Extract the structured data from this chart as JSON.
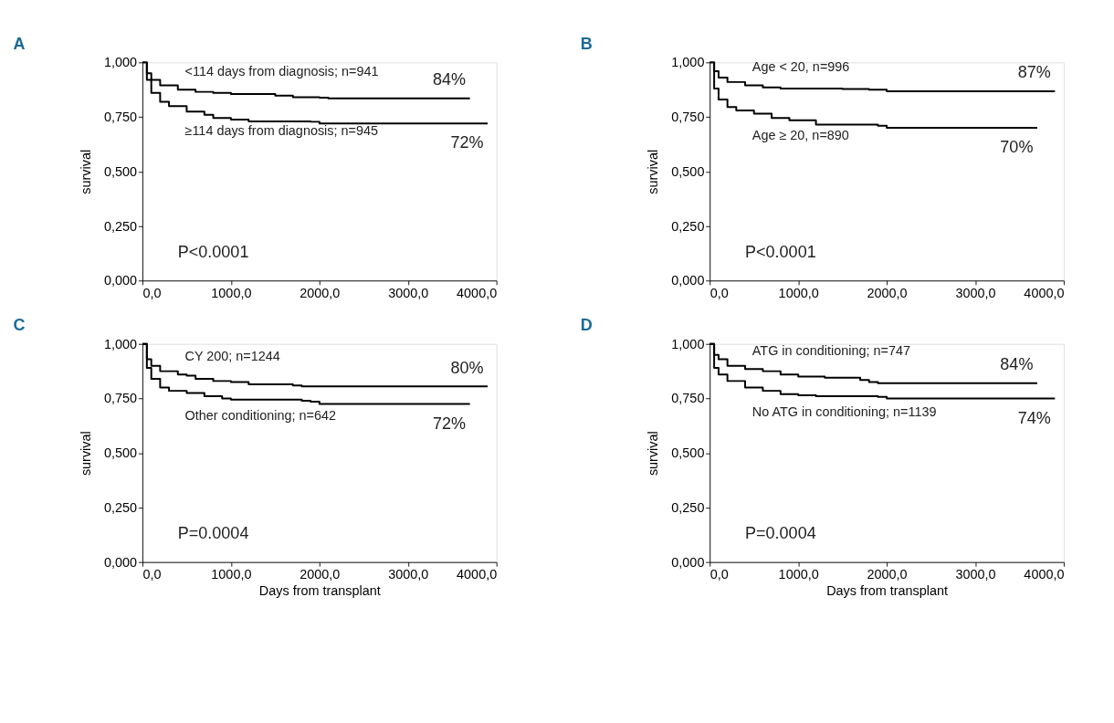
{
  "chart_data": [
    {
      "type": "step",
      "title": "A",
      "ylabel": "survival",
      "x": [
        0,
        50,
        100,
        200,
        400,
        600,
        800,
        1000,
        1500,
        1700,
        2000,
        2100,
        3700
      ],
      "series": [
        {
          "name": "<114 days from diagnosis; n=941",
          "color": "#000000",
          "values": [
            1,
            0.95,
            0.92,
            0.895,
            0.875,
            0.865,
            0.86,
            0.855,
            0.848,
            0.84,
            0.838,
            0.835,
            0.835
          ]
        },
        {
          "name": "≥114 days from diagnosis; n=945",
          "color": "#000000",
          "x": [
            0,
            50,
            100,
            200,
            300,
            500,
            700,
            800,
            1000,
            1200,
            1900,
            2000,
            3900
          ],
          "values": [
            1,
            0.92,
            0.86,
            0.82,
            0.8,
            0.775,
            0.76,
            0.745,
            0.738,
            0.73,
            0.728,
            0.72,
            0.72
          ]
        }
      ],
      "xlim": [
        0,
        4000
      ],
      "ylim": [
        0,
        1
      ],
      "xticks": [
        {
          "value": 0,
          "label": "0,0"
        },
        {
          "value": 1000,
          "label": "1000,0"
        },
        {
          "value": 2000,
          "label": "2000,0"
        },
        {
          "value": 3000,
          "label": "3000,0"
        },
        {
          "value": 4000,
          "label": "4000,0"
        }
      ],
      "yticks": [
        {
          "value": 0,
          "label": "0,000"
        },
        {
          "value": 0.25,
          "label": "0,250"
        },
        {
          "value": 0.5,
          "label": "0,500"
        },
        {
          "value": 0.75,
          "label": "0,750"
        },
        {
          "value": 1,
          "label": "1,000"
        }
      ],
      "annotations": [
        "84%",
        "72%",
        "P<0.0001"
      ],
      "grid": false,
      "legend": false
    },
    {
      "type": "step",
      "title": "B",
      "ylabel": "survival",
      "x": [
        0,
        50,
        100,
        200,
        400,
        600,
        800,
        1500,
        1800,
        2000,
        3900
      ],
      "series": [
        {
          "name": "Age < 20, n=996",
          "color": "#000000",
          "values": [
            1,
            0.96,
            0.93,
            0.91,
            0.895,
            0.885,
            0.88,
            0.878,
            0.875,
            0.868,
            0.868
          ]
        },
        {
          "name": "Age ≥ 20, n=890",
          "color": "#000000",
          "x": [
            0,
            50,
            100,
            200,
            300,
            500,
            700,
            900,
            1200,
            1900,
            2000,
            3700
          ],
          "values": [
            1,
            0.88,
            0.83,
            0.795,
            0.78,
            0.765,
            0.745,
            0.735,
            0.715,
            0.71,
            0.7,
            0.7
          ]
        }
      ],
      "xlim": [
        0,
        4000
      ],
      "ylim": [
        0,
        1
      ],
      "xticks": [
        {
          "value": 0,
          "label": "0,0"
        },
        {
          "value": 1000,
          "label": "1000,0"
        },
        {
          "value": 2000,
          "label": "2000,0"
        },
        {
          "value": 3000,
          "label": "3000,0"
        },
        {
          "value": 4000,
          "label": "4000,0"
        }
      ],
      "yticks": [
        {
          "value": 0,
          "label": "0,000"
        },
        {
          "value": 0.25,
          "label": "0,250"
        },
        {
          "value": 0.5,
          "label": "0,500"
        },
        {
          "value": 0.75,
          "label": "0,750"
        },
        {
          "value": 1,
          "label": "1,000"
        }
      ],
      "annotations": [
        "87%",
        "70%",
        "P<0.0001"
      ],
      "grid": false,
      "legend": false
    },
    {
      "type": "step",
      "title": "C",
      "ylabel": "survival",
      "xlabel": "Days from transplant",
      "x": [
        0,
        50,
        100,
        200,
        400,
        500,
        600,
        800,
        1000,
        1200,
        1700,
        1800,
        3900
      ],
      "series": [
        {
          "name": "CY 200; n=1244",
          "color": "#000000",
          "values": [
            1,
            0.93,
            0.9,
            0.875,
            0.86,
            0.855,
            0.84,
            0.83,
            0.825,
            0.815,
            0.81,
            0.805,
            0.805
          ]
        },
        {
          "name": "Other conditioning; n=642",
          "color": "#000000",
          "x": [
            0,
            50,
            100,
            200,
            300,
            500,
            700,
            900,
            1000,
            1800,
            1900,
            2000,
            3700
          ],
          "values": [
            1,
            0.89,
            0.84,
            0.8,
            0.785,
            0.775,
            0.76,
            0.75,
            0.745,
            0.74,
            0.735,
            0.725,
            0.725
          ]
        }
      ],
      "xlim": [
        0,
        4000
      ],
      "ylim": [
        0,
        1
      ],
      "xticks": [
        {
          "value": 0,
          "label": "0,0"
        },
        {
          "value": 1000,
          "label": "1000,0"
        },
        {
          "value": 2000,
          "label": "2000,0"
        },
        {
          "value": 3000,
          "label": "3000,0"
        },
        {
          "value": 4000,
          "label": "4000,0"
        }
      ],
      "yticks": [
        {
          "value": 0,
          "label": "0,000"
        },
        {
          "value": 0.25,
          "label": "0,250"
        },
        {
          "value": 0.5,
          "label": "0,500"
        },
        {
          "value": 0.75,
          "label": "0,750"
        },
        {
          "value": 1,
          "label": "1,000"
        }
      ],
      "annotations": [
        "80%",
        "72%",
        "P=0.0004"
      ],
      "grid": false,
      "legend": false
    },
    {
      "type": "step",
      "title": "D",
      "ylabel": "survival",
      "xlabel": "Days from transplant",
      "x": [
        0,
        50,
        100,
        200,
        400,
        600,
        800,
        1000,
        1300,
        1700,
        1800,
        1900,
        3700
      ],
      "series": [
        {
          "name": "ATG in conditioning; n=747",
          "color": "#000000",
          "values": [
            1,
            0.95,
            0.93,
            0.9,
            0.885,
            0.875,
            0.86,
            0.85,
            0.845,
            0.835,
            0.825,
            0.82,
            0.82
          ]
        },
        {
          "name": "No ATG in conditioning; n=1139",
          "color": "#000000",
          "x": [
            0,
            50,
            100,
            200,
            400,
            600,
            800,
            1000,
            1200,
            1900,
            2000,
            3900
          ],
          "values": [
            1,
            0.89,
            0.86,
            0.83,
            0.8,
            0.785,
            0.77,
            0.765,
            0.76,
            0.757,
            0.75,
            0.75
          ]
        }
      ],
      "xlim": [
        0,
        4000
      ],
      "ylim": [
        0,
        1
      ],
      "xticks": [
        {
          "value": 0,
          "label": "0,0"
        },
        {
          "value": 1000,
          "label": "1000,0"
        },
        {
          "value": 2000,
          "label": "2000,0"
        },
        {
          "value": 3000,
          "label": "3000,0"
        },
        {
          "value": 4000,
          "label": "4000,0"
        }
      ],
      "yticks": [
        {
          "value": 0,
          "label": "0,000"
        },
        {
          "value": 0.25,
          "label": "0,250"
        },
        {
          "value": 0.5,
          "label": "0,500"
        },
        {
          "value": 0.75,
          "label": "0,750"
        },
        {
          "value": 1,
          "label": "1,000"
        }
      ],
      "annotations": [
        "84%",
        "74%",
        "P=0.0004"
      ],
      "grid": false,
      "legend": false
    }
  ]
}
